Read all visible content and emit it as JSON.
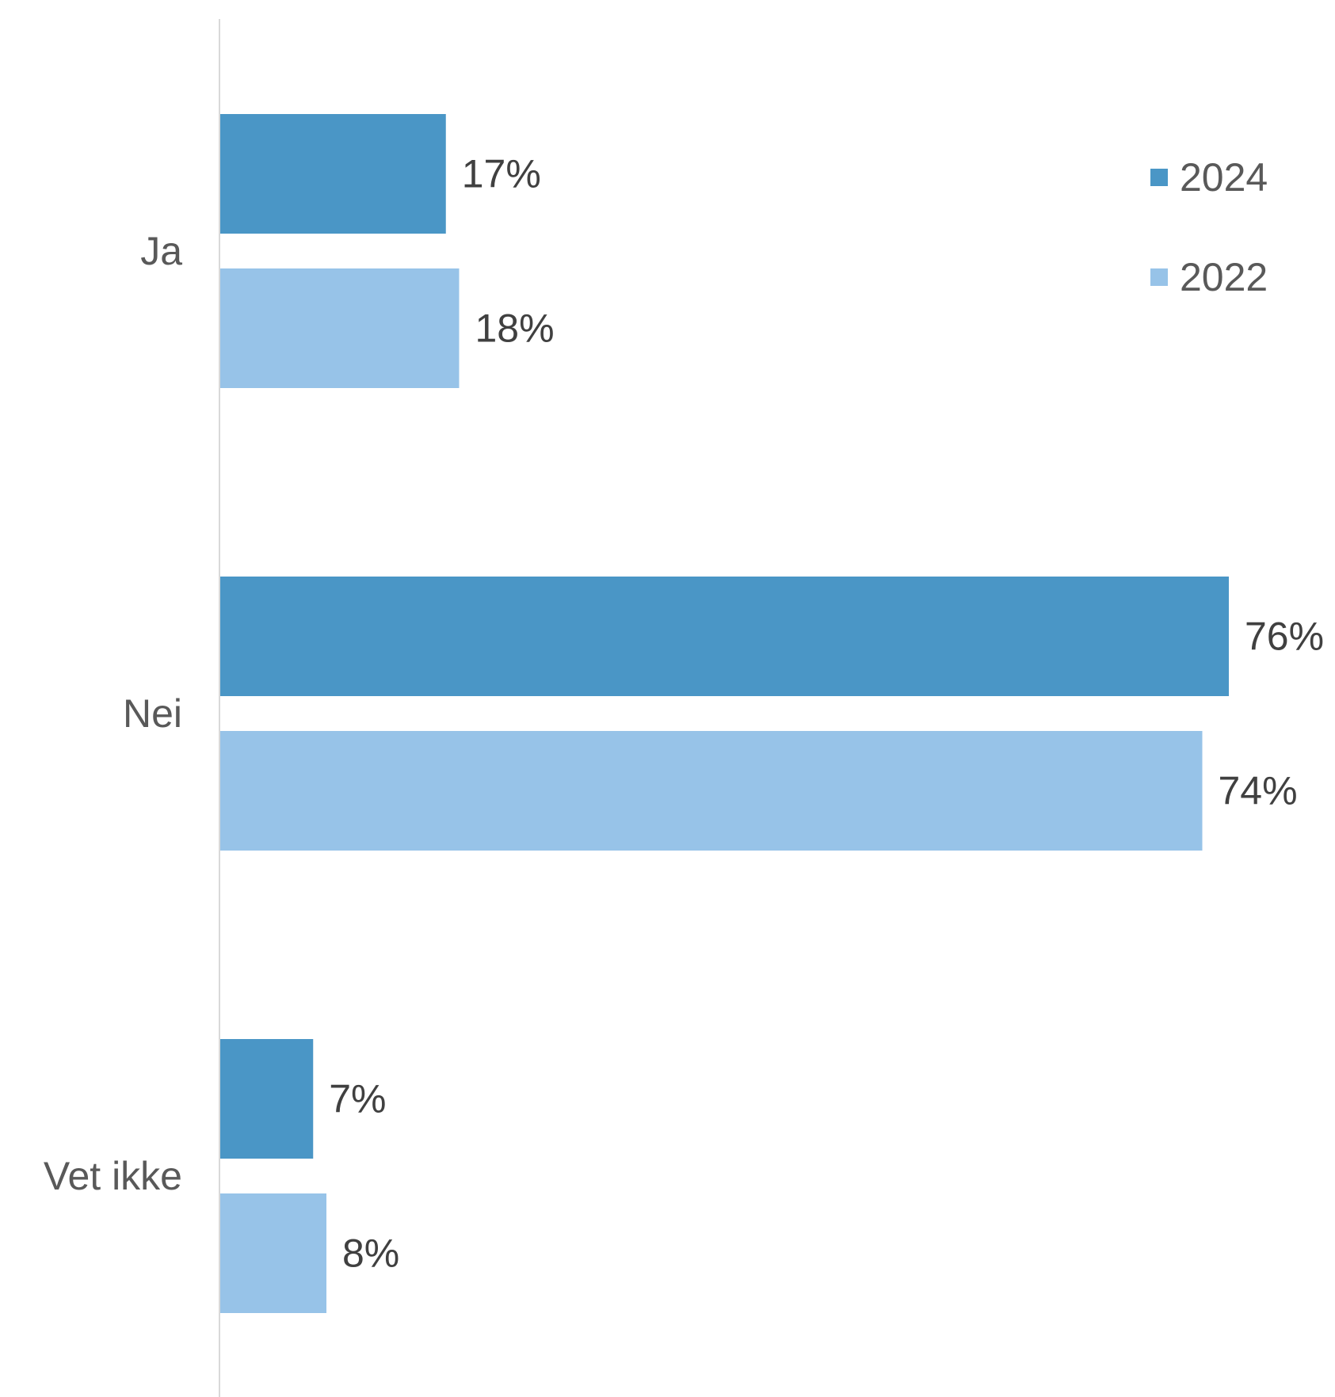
{
  "chart_data": {
    "type": "bar",
    "orientation": "horizontal",
    "categories": [
      "Ja",
      "Nei",
      "Vet ikke"
    ],
    "series": [
      {
        "name": "2024",
        "color": "#4a96c6",
        "values": [
          17,
          76,
          7
        ],
        "labels": [
          "17%",
          "76%",
          "7%"
        ]
      },
      {
        "name": "2022",
        "color": "#97c3e8",
        "values": [
          18,
          74,
          8
        ],
        "labels": [
          "18%",
          "74%",
          "8%"
        ]
      }
    ],
    "unit": "%",
    "xlim": [
      0,
      100
    ],
    "grid": false,
    "value_axis_visible": false,
    "legend_position": "top-right",
    "axis_line_color": "#d9d9d9"
  }
}
